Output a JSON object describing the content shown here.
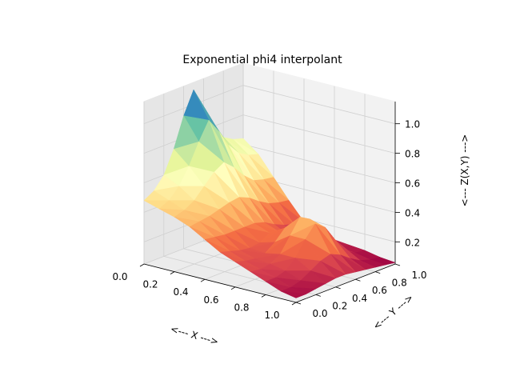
{
  "chart_data": {
    "type": "surface3d",
    "title": "Exponential phi4 interpolant",
    "xlabel": "<--- X --->",
    "ylabel": "<--- Y --->",
    "zlabel": "<--- Z(X,Y) --->",
    "xlim": [
      0.0,
      1.0
    ],
    "ylim": [
      0.0,
      1.0
    ],
    "zlim": [
      0.05,
      1.15
    ],
    "x_ticks": [
      "0.0",
      "0.2",
      "0.4",
      "0.6",
      "0.8",
      "1.0"
    ],
    "y_ticks": [
      "0.0",
      "0.2",
      "0.4",
      "0.6",
      "0.8",
      "1.0"
    ],
    "z_ticks": [
      "0.2",
      "0.4",
      "0.6",
      "0.8",
      "1.0"
    ],
    "x_tick_values": [
      0.0,
      0.2,
      0.4,
      0.6,
      0.8,
      1.0
    ],
    "y_tick_values": [
      0.0,
      0.2,
      0.4,
      0.6,
      0.8,
      1.0
    ],
    "z_tick_values": [
      0.2,
      0.4,
      0.6,
      0.8,
      1.0
    ],
    "colormap": "Spectral",
    "grid": true,
    "x": [
      0.0,
      0.1,
      0.2,
      0.3,
      0.4,
      0.5,
      0.6,
      0.7,
      0.8,
      0.9,
      1.0
    ],
    "y": [
      0.0,
      0.1,
      0.2,
      0.3,
      0.4,
      0.5,
      0.6,
      0.7,
      0.8,
      0.9,
      1.0
    ],
    "z": [
      [
        0.48,
        0.52,
        0.6,
        0.75,
        0.95,
        1.1,
        0.95,
        0.8,
        0.7,
        0.66,
        0.64
      ],
      [
        0.45,
        0.48,
        0.55,
        0.66,
        0.8,
        0.92,
        0.82,
        0.7,
        0.62,
        0.58,
        0.56
      ],
      [
        0.42,
        0.44,
        0.48,
        0.55,
        0.62,
        0.66,
        0.6,
        0.52,
        0.46,
        0.44,
        0.43
      ],
      [
        0.38,
        0.39,
        0.4,
        0.42,
        0.44,
        0.45,
        0.42,
        0.37,
        0.33,
        0.31,
        0.3
      ],
      [
        0.32,
        0.31,
        0.3,
        0.3,
        0.3,
        0.3,
        0.28,
        0.24,
        0.21,
        0.19,
        0.18
      ],
      [
        0.26,
        0.24,
        0.22,
        0.21,
        0.22,
        0.26,
        0.24,
        0.19,
        0.15,
        0.13,
        0.12
      ],
      [
        0.22,
        0.2,
        0.19,
        0.2,
        0.25,
        0.32,
        0.3,
        0.22,
        0.15,
        0.12,
        0.11
      ],
      [
        0.18,
        0.17,
        0.18,
        0.22,
        0.32,
        0.42,
        0.38,
        0.26,
        0.16,
        0.11,
        0.1
      ],
      [
        0.14,
        0.14,
        0.16,
        0.22,
        0.32,
        0.4,
        0.35,
        0.24,
        0.14,
        0.1,
        0.09
      ],
      [
        0.1,
        0.1,
        0.12,
        0.16,
        0.2,
        0.22,
        0.19,
        0.14,
        0.1,
        0.08,
        0.07
      ],
      [
        0.08,
        0.08,
        0.09,
        0.1,
        0.11,
        0.11,
        0.1,
        0.09,
        0.08,
        0.07,
        0.06
      ]
    ]
  }
}
